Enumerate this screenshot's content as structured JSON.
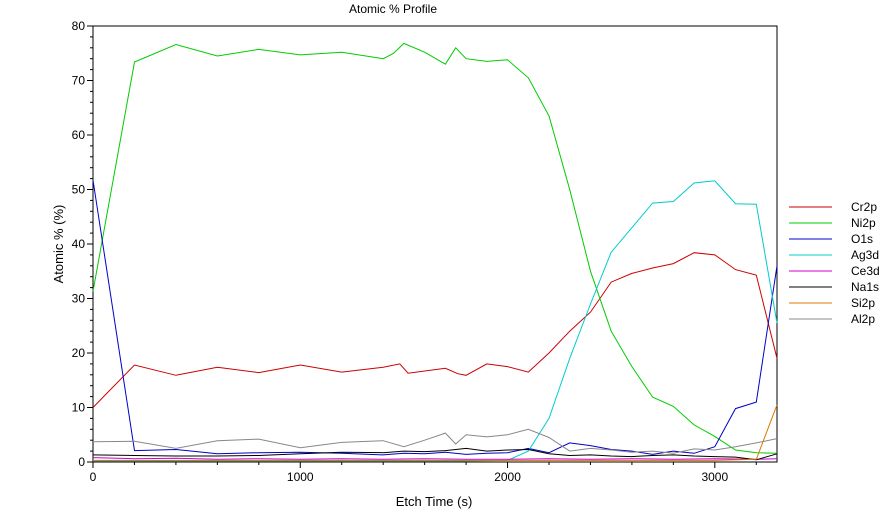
{
  "chart_data": {
    "type": "line",
    "title": "Atomic % Profile",
    "xlabel": "Etch Time (s)",
    "ylabel": "Atomic % (%)",
    "xlim": [
      0,
      3300
    ],
    "ylim": [
      0,
      80
    ],
    "xticks": [
      0,
      1000,
      2000,
      3000
    ],
    "yticks": [
      0,
      10,
      20,
      30,
      40,
      50,
      60,
      70,
      80
    ],
    "grid": false,
    "legend_position": "right",
    "series": [
      {
        "name": "Cr2p",
        "color": "#cc0000",
        "points": [
          [
            0,
            10
          ],
          [
            200,
            17.8
          ],
          [
            400,
            15.9
          ],
          [
            600,
            17.4
          ],
          [
            800,
            16.4
          ],
          [
            1000,
            17.8
          ],
          [
            1200,
            16.5
          ],
          [
            1400,
            17.4
          ],
          [
            1480,
            18
          ],
          [
            1520,
            16.3
          ],
          [
            1700,
            17.2
          ],
          [
            1760,
            16.2
          ],
          [
            1800,
            15.9
          ],
          [
            1900,
            18
          ],
          [
            2000,
            17.5
          ],
          [
            2100,
            16.5
          ],
          [
            2200,
            20
          ],
          [
            2300,
            24
          ],
          [
            2400,
            27.5
          ],
          [
            2500,
            33
          ],
          [
            2600,
            34.6
          ],
          [
            2700,
            35.6
          ],
          [
            2800,
            36.4
          ],
          [
            2900,
            38.4
          ],
          [
            3000,
            38
          ],
          [
            3100,
            35.3
          ],
          [
            3200,
            34.3
          ],
          [
            3300,
            19
          ]
        ]
      },
      {
        "name": "Ni2p",
        "color": "#00cc00",
        "points": [
          [
            0,
            31.3
          ],
          [
            200,
            73.4
          ],
          [
            400,
            76.6
          ],
          [
            600,
            74.5
          ],
          [
            800,
            75.7
          ],
          [
            1000,
            74.7
          ],
          [
            1200,
            75.2
          ],
          [
            1400,
            74
          ],
          [
            1450,
            75
          ],
          [
            1500,
            76.8
          ],
          [
            1600,
            75.2
          ],
          [
            1700,
            73
          ],
          [
            1750,
            76
          ],
          [
            1800,
            74
          ],
          [
            1900,
            73.5
          ],
          [
            2000,
            73.8
          ],
          [
            2100,
            70.5
          ],
          [
            2200,
            63.5
          ],
          [
            2300,
            50
          ],
          [
            2400,
            35
          ],
          [
            2500,
            24
          ],
          [
            2600,
            17.5
          ],
          [
            2700,
            11.9
          ],
          [
            2800,
            10.2
          ],
          [
            2900,
            6.8
          ],
          [
            3000,
            4.7
          ],
          [
            3100,
            2.2
          ],
          [
            3200,
            1.7
          ],
          [
            3300,
            1.6
          ]
        ]
      },
      {
        "name": "O1s",
        "color": "#0000cc",
        "points": [
          [
            0,
            51.7
          ],
          [
            200,
            2.1
          ],
          [
            400,
            2.3
          ],
          [
            600,
            1.5
          ],
          [
            800,
            1.7
          ],
          [
            1000,
            1.8
          ],
          [
            1200,
            1.6
          ],
          [
            1400,
            1.3
          ],
          [
            1500,
            1.6
          ],
          [
            1600,
            1.5
          ],
          [
            1700,
            1.8
          ],
          [
            1800,
            1.4
          ],
          [
            1900,
            1.6
          ],
          [
            2000,
            1.7
          ],
          [
            2100,
            2.5
          ],
          [
            2200,
            1.7
          ],
          [
            2300,
            3.5
          ],
          [
            2400,
            3
          ],
          [
            2500,
            2.3
          ],
          [
            2600,
            2
          ],
          [
            2700,
            1.4
          ],
          [
            2800,
            2
          ],
          [
            2900,
            1.6
          ],
          [
            3000,
            2.8
          ],
          [
            3100,
            9.8
          ],
          [
            3200,
            11
          ],
          [
            3300,
            36
          ]
        ]
      },
      {
        "name": "Ag3d",
        "color": "#00cccc",
        "points": [
          [
            0,
            0.2
          ],
          [
            200,
            0.2
          ],
          [
            400,
            0.2
          ],
          [
            600,
            0.2
          ],
          [
            800,
            0.2
          ],
          [
            1000,
            0.2
          ],
          [
            1200,
            0.2
          ],
          [
            1400,
            0.2
          ],
          [
            1600,
            0.2
          ],
          [
            1800,
            0.2
          ],
          [
            2000,
            0.3
          ],
          [
            2100,
            2
          ],
          [
            2200,
            8
          ],
          [
            2300,
            19
          ],
          [
            2400,
            29
          ],
          [
            2500,
            38.5
          ],
          [
            2600,
            43
          ],
          [
            2700,
            47.5
          ],
          [
            2800,
            47.8
          ],
          [
            2900,
            51.2
          ],
          [
            3000,
            51.6
          ],
          [
            3100,
            47.4
          ],
          [
            3200,
            47.3
          ],
          [
            3300,
            25.5
          ]
        ]
      },
      {
        "name": "Ce3d",
        "color": "#cc00cc",
        "points": [
          [
            0,
            0.8
          ],
          [
            200,
            0.6
          ],
          [
            400,
            0.7
          ],
          [
            600,
            0.5
          ],
          [
            800,
            0.6
          ],
          [
            1000,
            0.5
          ],
          [
            1200,
            0.6
          ],
          [
            1400,
            0.5
          ],
          [
            1600,
            0.6
          ],
          [
            1800,
            0.5
          ],
          [
            2000,
            0.5
          ],
          [
            2200,
            0.6
          ],
          [
            2400,
            0.5
          ],
          [
            2600,
            0.6
          ],
          [
            2800,
            0.5
          ],
          [
            3000,
            0.6
          ],
          [
            3200,
            0.5
          ],
          [
            3300,
            0.6
          ]
        ]
      },
      {
        "name": "Na1s",
        "color": "#000000",
        "points": [
          [
            0,
            1.3
          ],
          [
            200,
            1.2
          ],
          [
            400,
            1.1
          ],
          [
            600,
            1.1
          ],
          [
            800,
            1.2
          ],
          [
            1000,
            1.5
          ],
          [
            1200,
            1.8
          ],
          [
            1400,
            1.7
          ],
          [
            1500,
            2
          ],
          [
            1600,
            1.9
          ],
          [
            1700,
            2.1
          ],
          [
            1800,
            2.5
          ],
          [
            1900,
            2
          ],
          [
            2000,
            2.2
          ],
          [
            2100,
            2.3
          ],
          [
            2200,
            1.5
          ],
          [
            2300,
            1.2
          ],
          [
            2400,
            1.3
          ],
          [
            2500,
            1.1
          ],
          [
            2600,
            1
          ],
          [
            2700,
            1.2
          ],
          [
            2800,
            1.3
          ],
          [
            2900,
            1.1
          ],
          [
            3000,
            1
          ],
          [
            3100,
            0.9
          ],
          [
            3200,
            0.4
          ],
          [
            3300,
            1.5
          ]
        ]
      },
      {
        "name": "Si2p",
        "color": "#dd7700",
        "points": [
          [
            0,
            0.3
          ],
          [
            200,
            0.3
          ],
          [
            400,
            0.3
          ],
          [
            600,
            0.3
          ],
          [
            800,
            0.3
          ],
          [
            1000,
            0.3
          ],
          [
            1200,
            0.3
          ],
          [
            1400,
            0.3
          ],
          [
            1600,
            0.3
          ],
          [
            1800,
            0.3
          ],
          [
            2000,
            0.3
          ],
          [
            2200,
            0.3
          ],
          [
            2400,
            0.3
          ],
          [
            2600,
            0.3
          ],
          [
            2800,
            0.3
          ],
          [
            3000,
            0.3
          ],
          [
            3200,
            0.5
          ],
          [
            3300,
            10.5
          ]
        ]
      },
      {
        "name": "Al2p",
        "color": "#888888",
        "points": [
          [
            0,
            3.7
          ],
          [
            200,
            3.8
          ],
          [
            400,
            2.5
          ],
          [
            600,
            3.9
          ],
          [
            800,
            4.2
          ],
          [
            1000,
            2.6
          ],
          [
            1200,
            3.6
          ],
          [
            1400,
            3.9
          ],
          [
            1500,
            2.8
          ],
          [
            1600,
            4
          ],
          [
            1700,
            5.3
          ],
          [
            1750,
            3.3
          ],
          [
            1800,
            5
          ],
          [
            1900,
            4.6
          ],
          [
            2000,
            5
          ],
          [
            2100,
            6
          ],
          [
            2200,
            4.5
          ],
          [
            2300,
            2
          ],
          [
            2400,
            2.5
          ],
          [
            2500,
            2.2
          ],
          [
            2600,
            1.8
          ],
          [
            2700,
            2
          ],
          [
            2800,
            1.6
          ],
          [
            2900,
            2.4
          ],
          [
            3000,
            2.2
          ],
          [
            3100,
            2.8
          ],
          [
            3200,
            3.5
          ],
          [
            3300,
            4.3
          ]
        ]
      }
    ]
  }
}
